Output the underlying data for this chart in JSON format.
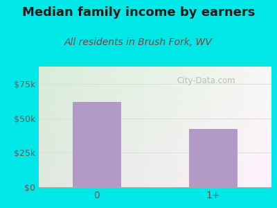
{
  "title": "Median family income by earners",
  "subtitle": "All residents in Brush Fork, WV",
  "categories": [
    "0",
    "1+"
  ],
  "values": [
    62000,
    42000
  ],
  "bar_color": "#b399c8",
  "ylim": [
    0,
    87500
  ],
  "yticks": [
    0,
    25000,
    50000,
    75000
  ],
  "ytick_labels": [
    "$0",
    "$25k",
    "$50k",
    "$75k"
  ],
  "title_fontsize": 13,
  "subtitle_fontsize": 10,
  "title_color": "#1a1a1a",
  "subtitle_color": "#7a4040",
  "tick_color": "#7a5050",
  "background_outer": "#00e8e8",
  "watermark": "ⓘ City-Data.com",
  "grid_color": "#dddddd"
}
